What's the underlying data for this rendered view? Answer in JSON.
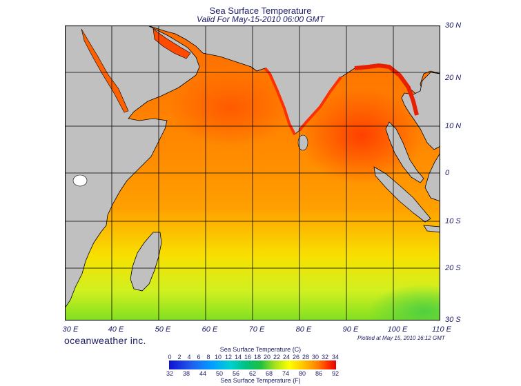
{
  "header": {
    "title": "Sea Surface Temperature",
    "subtitle": "Valid For May-15-2010 06:00 GMT"
  },
  "map": {
    "lat_labels": [
      "30 N",
      "20 N",
      "10 N",
      "0",
      "10 S",
      "20 S",
      "30 S"
    ],
    "lon_labels": [
      "30 E",
      "40 E",
      "50 E",
      "60 E",
      "70 E",
      "80 E",
      "90 E",
      "100 E",
      "110 E"
    ]
  },
  "footer": {
    "brand": "oceanweather inc.",
    "plotted": "Plotted at May 15, 2010 16:12 GMT"
  },
  "legend": {
    "title_c": "Sea Surface Temperature (C)",
    "title_f": "Sea Surface Temperature (F)",
    "celsius_ticks": [
      "0",
      "2",
      "4",
      "6",
      "8",
      "10",
      "12",
      "14",
      "16",
      "18",
      "20",
      "22",
      "24",
      "26",
      "28",
      "30",
      "32",
      "34"
    ],
    "fahrenheit_ticks": [
      "32",
      "38",
      "44",
      "50",
      "56",
      "62",
      "68",
      "74",
      "80",
      "86",
      "92"
    ]
  },
  "colors": {
    "land": "#c0c0c0",
    "ocean_warm": "#ff8c00",
    "ocean_cool": "#e0f020",
    "ocean_hot": "#ff3000",
    "grid": "#000000"
  }
}
